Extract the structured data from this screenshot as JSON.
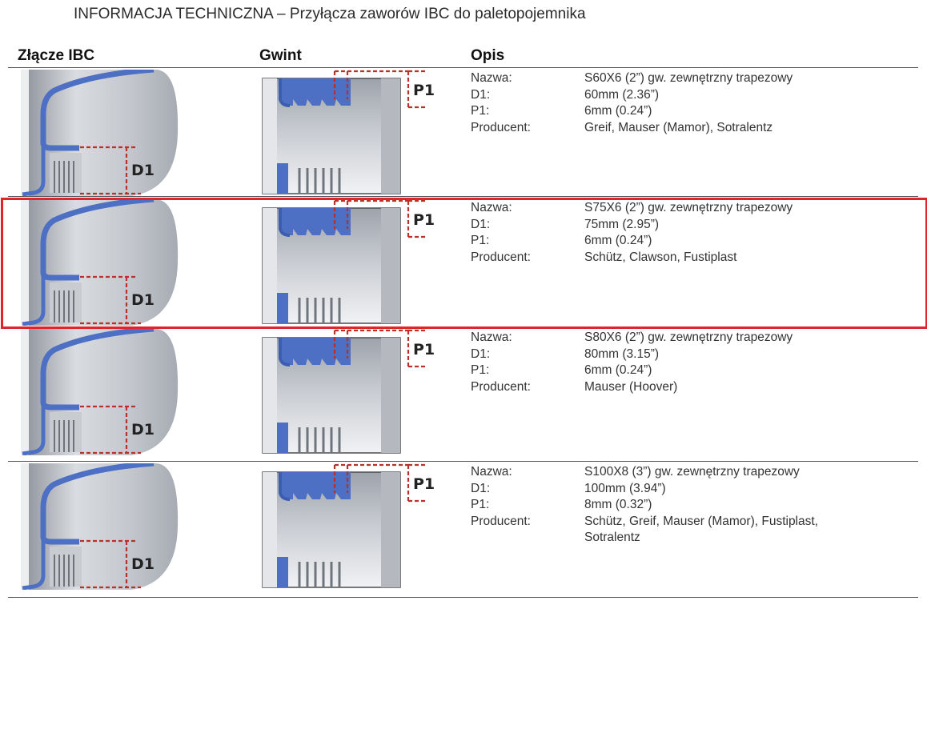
{
  "document": {
    "title": "INFORMACJA TECHNICZNA – Przyłącza zaworów IBC do paletopojemnika"
  },
  "table": {
    "headers": [
      "Złącze IBC",
      "Gwint",
      "Opis"
    ],
    "labels": {
      "name": "Nazwa:",
      "d1": "D1:",
      "p1": "P1:",
      "producer": "Producent:"
    },
    "rows": [
      {
        "diagram_d1": "D1",
        "diagram_p1": "P1",
        "name": "S60X6 (2”) gw. zewnętrzny trapezowy",
        "d1": "60mm (2.36”)",
        "p1": "6mm (0.24”)",
        "producer": [
          "Greif, Mauser (Mamor), Sotralentz"
        ]
      },
      {
        "diagram_d1": "D1",
        "diagram_p1": "P1",
        "name": "S75X6 (2”) gw. zewnętrzny trapezowy",
        "d1": "75mm (2.95”)",
        "p1": "6mm (0.24”)",
        "producer": [
          "Schütz, Clawson, Fustiplast"
        ]
      },
      {
        "diagram_d1": "D1",
        "diagram_p1": "P1",
        "name": "S80X6 (2”) gw. zewnętrzny trapezowy",
        "d1": "80mm (3.15”)",
        "p1": "6mm (0.24”)",
        "producer": [
          "Mauser (Hoover)"
        ]
      },
      {
        "diagram_d1": "D1",
        "diagram_p1": "P1",
        "name": "S100X8 (3”) gw. zewnętrzny trapezowy",
        "d1": "100mm (3.94”)",
        "p1": "8mm (0.32”)",
        "producer": [
          "Schütz, Greif, Mauser (Mamor), Fustiplast,",
          "Sotralentz"
        ]
      }
    ]
  },
  "colors": {
    "highlight": "#e0242b",
    "dimension": "#b8312b",
    "gasket": "#4d6fc4",
    "metal": "#b9bdc4"
  }
}
